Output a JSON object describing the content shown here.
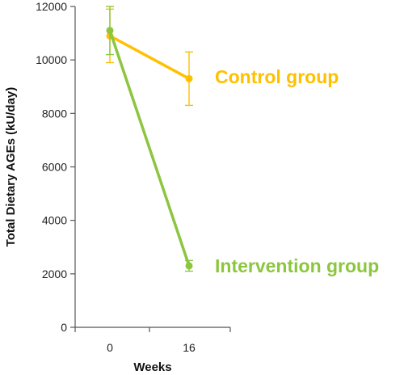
{
  "chart_data": {
    "type": "line",
    "title": "",
    "xlabel": "Weeks",
    "ylabel": "Total Dietary AGEs (kU/day)",
    "categories": [
      "0",
      "16"
    ],
    "ylim": [
      0,
      12000
    ],
    "yticks": [
      0,
      2000,
      4000,
      6000,
      8000,
      10000,
      12000
    ],
    "grid": false,
    "series": [
      {
        "name": "Control group",
        "color": "#FFC000",
        "values": [
          10900,
          9300
        ],
        "error": [
          1000,
          1000
        ]
      },
      {
        "name": "Intervention group",
        "color": "#8CC63F",
        "values": [
          11100,
          2300
        ],
        "error": [
          900,
          200
        ]
      }
    ]
  }
}
